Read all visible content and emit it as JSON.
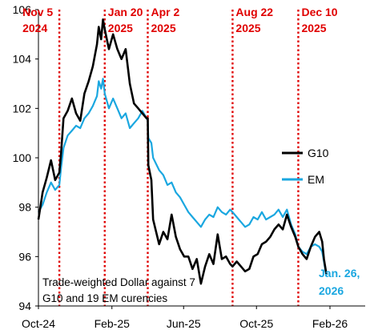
{
  "chart_data": {
    "type": "line",
    "xlabel": "",
    "ylabel": "",
    "ylim": [
      94,
      106
    ],
    "y_ticks": [
      "94",
      "96",
      "98",
      "100",
      "102",
      "104",
      "106"
    ],
    "x_ticks": [
      "Oct-24",
      "Feb-25",
      "Jun-25",
      "Oct-25",
      "Feb-26"
    ],
    "grid": false,
    "legend_placement": "right",
    "colors": {
      "g10": "#000000",
      "em": "#1aa7e0",
      "events": "#e00000",
      "end_label": "#1aa7e0"
    },
    "series": [
      {
        "name": "G10",
        "values": [
          [
            "2024-10-01",
            97.5
          ],
          [
            "2024-10-08",
            98.6
          ],
          [
            "2024-10-15",
            99.2
          ],
          [
            "2024-10-22",
            99.9
          ],
          [
            "2024-10-29",
            99.1
          ],
          [
            "2024-11-05",
            99.4
          ],
          [
            "2024-11-08",
            100.2
          ],
          [
            "2024-11-12",
            101.6
          ],
          [
            "2024-11-19",
            101.9
          ],
          [
            "2024-11-26",
            102.4
          ],
          [
            "2024-12-03",
            101.8
          ],
          [
            "2024-12-10",
            101.5
          ],
          [
            "2024-12-17",
            102.6
          ],
          [
            "2024-12-24",
            103.1
          ],
          [
            "2024-12-31",
            103.7
          ],
          [
            "2025-01-07",
            104.6
          ],
          [
            "2025-01-10",
            105.3
          ],
          [
            "2025-01-14",
            104.8
          ],
          [
            "2025-01-17",
            105.6
          ],
          [
            "2025-01-20",
            105.2
          ],
          [
            "2025-01-27",
            104.4
          ],
          [
            "2025-02-03",
            105.0
          ],
          [
            "2025-02-10",
            104.4
          ],
          [
            "2025-02-17",
            104.0
          ],
          [
            "2025-02-24",
            104.4
          ],
          [
            "2025-03-03",
            103.0
          ],
          [
            "2025-03-10",
            102.2
          ],
          [
            "2025-03-17",
            102.0
          ],
          [
            "2025-03-24",
            101.8
          ],
          [
            "2025-03-31",
            101.6
          ],
          [
            "2025-04-02",
            101.6
          ],
          [
            "2025-04-03",
            99.7
          ],
          [
            "2025-04-08",
            99.1
          ],
          [
            "2025-04-11",
            97.5
          ],
          [
            "2025-04-21",
            96.5
          ],
          [
            "2025-04-28",
            97.0
          ],
          [
            "2025-05-05",
            96.7
          ],
          [
            "2025-05-12",
            97.7
          ],
          [
            "2025-05-19",
            96.8
          ],
          [
            "2025-05-26",
            96.3
          ],
          [
            "2025-06-02",
            96.0
          ],
          [
            "2025-06-09",
            96.0
          ],
          [
            "2025-06-16",
            95.5
          ],
          [
            "2025-06-23",
            95.9
          ],
          [
            "2025-06-30",
            94.9
          ],
          [
            "2025-07-07",
            95.6
          ],
          [
            "2025-07-14",
            96.1
          ],
          [
            "2025-07-21",
            95.7
          ],
          [
            "2025-07-28",
            96.9
          ],
          [
            "2025-08-04",
            95.9
          ],
          [
            "2025-08-11",
            96.0
          ],
          [
            "2025-08-18",
            95.7
          ],
          [
            "2025-08-22",
            95.6
          ],
          [
            "2025-08-29",
            95.8
          ],
          [
            "2025-09-05",
            95.6
          ],
          [
            "2025-09-12",
            95.4
          ],
          [
            "2025-09-19",
            95.5
          ],
          [
            "2025-09-26",
            96.0
          ],
          [
            "2025-10-03",
            96.1
          ],
          [
            "2025-10-10",
            96.5
          ],
          [
            "2025-10-17",
            96.6
          ],
          [
            "2025-10-24",
            96.8
          ],
          [
            "2025-10-31",
            97.1
          ],
          [
            "2025-11-07",
            97.3
          ],
          [
            "2025-11-14",
            97.1
          ],
          [
            "2025-11-21",
            97.7
          ],
          [
            "2025-11-28",
            97.2
          ],
          [
            "2025-12-05",
            96.8
          ],
          [
            "2025-12-10",
            96.4
          ],
          [
            "2025-12-17",
            96.1
          ],
          [
            "2025-12-24",
            95.9
          ],
          [
            "2025-12-31",
            96.4
          ],
          [
            "2026-01-07",
            96.8
          ],
          [
            "2026-01-14",
            97.0
          ],
          [
            "2026-01-19",
            96.6
          ],
          [
            "2026-01-22",
            95.9
          ],
          [
            "2026-01-26",
            95.3
          ]
        ]
      },
      {
        "name": "EM",
        "values": [
          [
            "2024-10-01",
            97.8
          ],
          [
            "2024-10-08",
            98.1
          ],
          [
            "2024-10-15",
            98.6
          ],
          [
            "2024-10-22",
            99.0
          ],
          [
            "2024-10-29",
            98.7
          ],
          [
            "2024-11-05",
            98.9
          ],
          [
            "2024-11-08",
            99.6
          ],
          [
            "2024-11-12",
            100.4
          ],
          [
            "2024-11-19",
            100.9
          ],
          [
            "2024-11-26",
            101.1
          ],
          [
            "2024-12-03",
            101.3
          ],
          [
            "2024-12-10",
            101.2
          ],
          [
            "2024-12-17",
            101.6
          ],
          [
            "2024-12-24",
            101.8
          ],
          [
            "2024-12-31",
            102.1
          ],
          [
            "2025-01-07",
            102.5
          ],
          [
            "2025-01-10",
            103.1
          ],
          [
            "2025-01-14",
            102.8
          ],
          [
            "2025-01-17",
            103.2
          ],
          [
            "2025-01-20",
            102.6
          ],
          [
            "2025-01-27",
            102.0
          ],
          [
            "2025-02-03",
            102.4
          ],
          [
            "2025-02-10",
            102.0
          ],
          [
            "2025-02-17",
            101.6
          ],
          [
            "2025-02-24",
            101.8
          ],
          [
            "2025-03-03",
            101.2
          ],
          [
            "2025-03-10",
            101.4
          ],
          [
            "2025-03-17",
            101.6
          ],
          [
            "2025-03-24",
            101.9
          ],
          [
            "2025-03-31",
            101.6
          ],
          [
            "2025-04-02",
            101.5
          ],
          [
            "2025-04-03",
            100.8
          ],
          [
            "2025-04-08",
            100.6
          ],
          [
            "2025-04-11",
            100.0
          ],
          [
            "2025-04-21",
            99.5
          ],
          [
            "2025-04-28",
            99.3
          ],
          [
            "2025-05-05",
            98.9
          ],
          [
            "2025-05-12",
            99.0
          ],
          [
            "2025-05-19",
            98.6
          ],
          [
            "2025-05-26",
            98.4
          ],
          [
            "2025-06-02",
            98.1
          ],
          [
            "2025-06-09",
            97.8
          ],
          [
            "2025-06-16",
            97.6
          ],
          [
            "2025-06-23",
            97.4
          ],
          [
            "2025-06-30",
            97.2
          ],
          [
            "2025-07-07",
            97.5
          ],
          [
            "2025-07-14",
            97.7
          ],
          [
            "2025-07-21",
            97.6
          ],
          [
            "2025-07-28",
            98.0
          ],
          [
            "2025-08-04",
            97.8
          ],
          [
            "2025-08-11",
            97.7
          ],
          [
            "2025-08-18",
            97.9
          ],
          [
            "2025-08-22",
            97.8
          ],
          [
            "2025-08-29",
            97.6
          ],
          [
            "2025-09-05",
            97.4
          ],
          [
            "2025-09-12",
            97.2
          ],
          [
            "2025-09-19",
            97.3
          ],
          [
            "2025-09-26",
            97.6
          ],
          [
            "2025-10-03",
            97.5
          ],
          [
            "2025-10-10",
            97.8
          ],
          [
            "2025-10-17",
            97.5
          ],
          [
            "2025-10-24",
            97.6
          ],
          [
            "2025-10-31",
            97.7
          ],
          [
            "2025-11-07",
            97.9
          ],
          [
            "2025-11-14",
            97.6
          ],
          [
            "2025-11-21",
            97.9
          ],
          [
            "2025-11-28",
            97.3
          ],
          [
            "2025-12-05",
            96.9
          ],
          [
            "2025-12-10",
            96.4
          ],
          [
            "2025-12-17",
            96.2
          ],
          [
            "2025-12-24",
            96.1
          ],
          [
            "2025-12-31",
            96.4
          ],
          [
            "2026-01-07",
            96.5
          ],
          [
            "2026-01-14",
            96.4
          ],
          [
            "2026-01-19",
            96.2
          ],
          [
            "2026-01-22",
            95.8
          ],
          [
            "2026-01-26",
            95.2
          ]
        ]
      }
    ],
    "events": [
      {
        "date": "2024-11-05",
        "line1": "Nov 5",
        "line2": "2024"
      },
      {
        "date": "2025-01-20",
        "line1": "Jan 20",
        "line2": "2025"
      },
      {
        "date": "2025-04-02",
        "line1": "Apr 2",
        "line2": "2025"
      },
      {
        "date": "2025-08-22",
        "line1": "Aug 22",
        "line2": "2025"
      },
      {
        "date": "2025-12-10",
        "line1": "Dec 10",
        "line2": "2025"
      }
    ],
    "end_label": {
      "line1": "Jan. 26,",
      "line2": "2026"
    },
    "note": {
      "line1": "Trade-weighted Dollar against 7",
      "line2": "G10 and 19 EM curencies"
    }
  }
}
